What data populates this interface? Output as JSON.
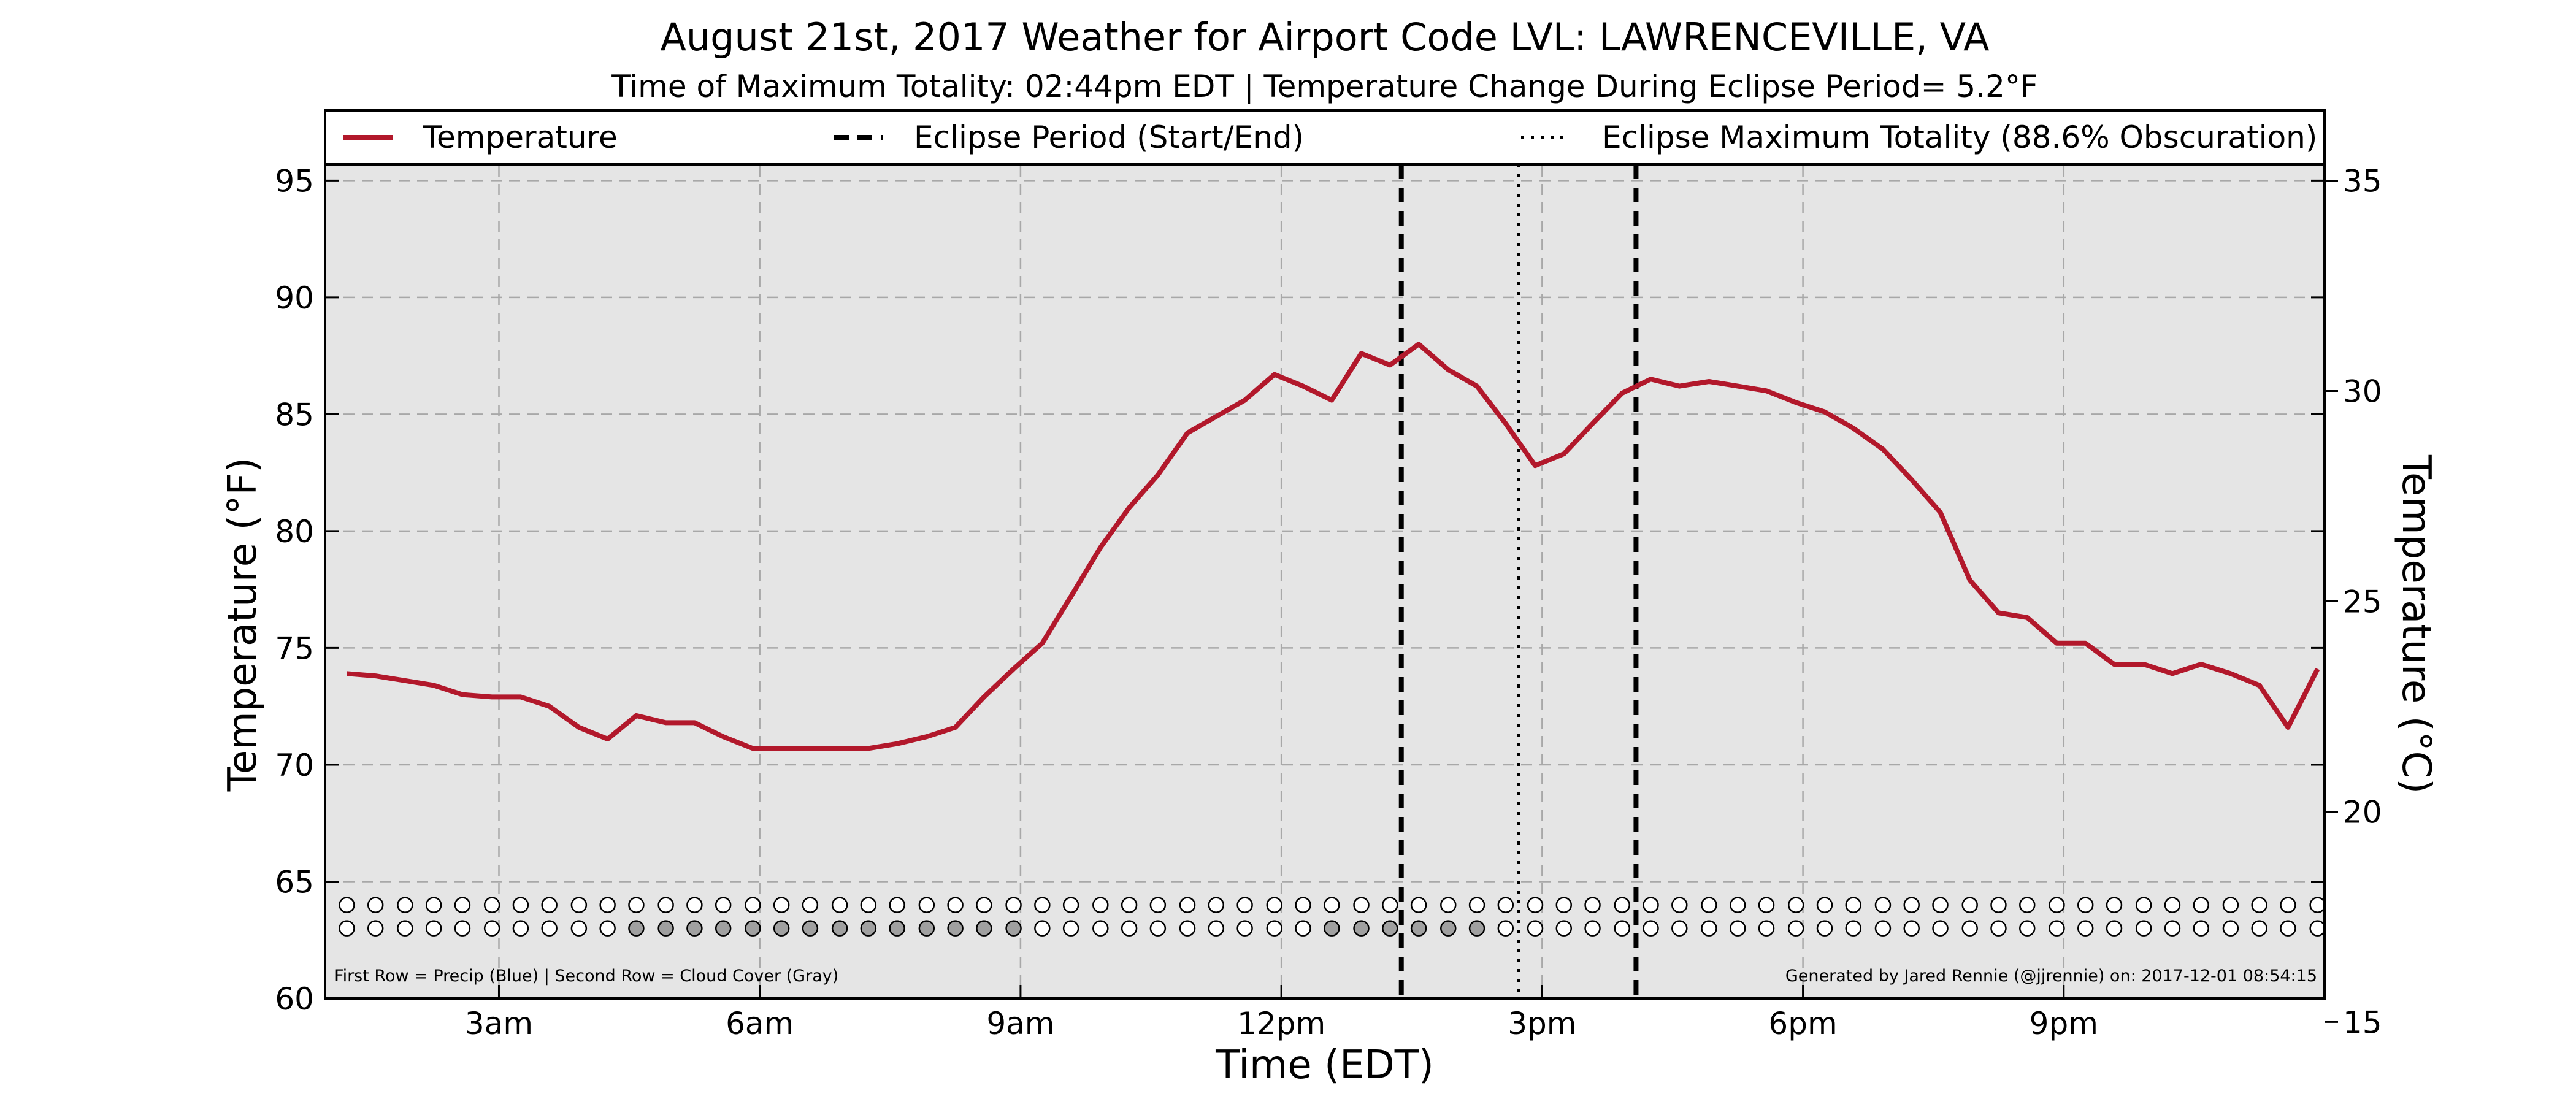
{
  "chart_data": {
    "type": "line",
    "title": "August 21st, 2017 Weather for Airport Code LVL: LAWRENCEVILLE, VA",
    "subtitle": "Time of Maximum Totality: 02:44pm EDT | Temperature Change During Eclipse Period= 5.2°F",
    "xlabel": "Time (EDT)",
    "ylabel": "Temperature (°F)",
    "ylabel_right": "Temperature (°C)",
    "xlim": [
      1.0,
      24.0
    ],
    "ylim": [
      60,
      98
    ],
    "ylim_right": [
      15.56,
      36.67
    ],
    "x_ticks": [
      {
        "x": 3,
        "label": "3am"
      },
      {
        "x": 6,
        "label": "6am"
      },
      {
        "x": 9,
        "label": "9am"
      },
      {
        "x": 12,
        "label": "12pm"
      },
      {
        "x": 15,
        "label": "3pm"
      },
      {
        "x": 18,
        "label": "6pm"
      },
      {
        "x": 21,
        "label": "9pm"
      }
    ],
    "y_ticks": [
      60,
      65,
      70,
      75,
      80,
      85,
      90,
      95
    ],
    "y_ticks_right": [
      15,
      20,
      25,
      30,
      35
    ],
    "grid": true,
    "legend": {
      "position": "top",
      "items": [
        "Temperature",
        "Eclipse Period (Start/End)",
        "Eclipse Maximum Totality (88.6% Obscuration)"
      ]
    },
    "series": [
      {
        "name": "Temperature",
        "color": "#b2182b",
        "x": [
          1.25,
          1.58,
          1.92,
          2.25,
          2.58,
          2.92,
          3.25,
          3.58,
          3.92,
          4.25,
          4.58,
          4.92,
          5.25,
          5.58,
          5.92,
          6.25,
          6.58,
          6.92,
          7.25,
          7.58,
          7.92,
          8.25,
          8.58,
          8.92,
          9.25,
          9.58,
          9.92,
          10.25,
          10.58,
          10.92,
          11.25,
          11.58,
          11.92,
          12.25,
          12.58,
          12.92,
          13.25,
          13.58,
          13.92,
          14.25,
          14.58,
          14.92,
          15.25,
          15.58,
          15.92,
          16.25,
          16.58,
          16.92,
          17.25,
          17.58,
          17.92,
          18.25,
          18.58,
          18.92,
          19.25,
          19.58,
          19.92,
          20.25,
          20.58,
          20.92,
          21.25,
          21.58,
          21.92,
          22.25,
          22.58,
          22.92,
          23.25,
          23.58,
          23.92
        ],
        "values": [
          73.9,
          73.8,
          73.6,
          73.4,
          73.0,
          72.9,
          72.9,
          72.5,
          71.6,
          71.1,
          72.1,
          71.8,
          71.8,
          71.2,
          70.7,
          70.7,
          70.7,
          70.7,
          70.7,
          70.9,
          71.2,
          71.6,
          72.9,
          74.1,
          75.2,
          77.2,
          79.3,
          81.0,
          82.4,
          84.2,
          84.9,
          85.6,
          86.7,
          86.2,
          85.6,
          87.6,
          87.1,
          88.0,
          86.9,
          86.2,
          84.6,
          82.8,
          83.3,
          84.6,
          85.9,
          86.5,
          86.2,
          86.4,
          86.2,
          86.0,
          85.5,
          85.1,
          84.4,
          83.5,
          82.2,
          80.8,
          77.9,
          76.5,
          76.3,
          75.2,
          75.2,
          74.3,
          74.3,
          73.9,
          74.3,
          73.9,
          73.4,
          71.6,
          74.1
        ]
      }
    ],
    "vlines": [
      {
        "x": 13.38,
        "style": "dashed",
        "label": "Eclipse Period (Start/End)"
      },
      {
        "x": 14.73,
        "style": "dotted",
        "label": "Eclipse Maximum Totality (88.6% Obscuration)"
      },
      {
        "x": 16.08,
        "style": "dashed",
        "label": "Eclipse Period (Start/End)"
      }
    ],
    "marker_rows": {
      "x": [
        1.25,
        1.58,
        1.92,
        2.25,
        2.58,
        2.92,
        3.25,
        3.58,
        3.92,
        4.25,
        4.58,
        4.92,
        5.25,
        5.58,
        5.92,
        6.25,
        6.58,
        6.92,
        7.25,
        7.58,
        7.92,
        8.25,
        8.58,
        8.92,
        9.25,
        9.58,
        9.92,
        10.25,
        10.58,
        10.92,
        11.25,
        11.58,
        11.92,
        12.25,
        12.58,
        12.92,
        13.25,
        13.58,
        13.92,
        14.25,
        14.58,
        14.92,
        15.25,
        15.58,
        15.92,
        16.25,
        16.58,
        16.92,
        17.25,
        17.58,
        17.92,
        18.25,
        18.58,
        18.92,
        19.25,
        19.58,
        19.92,
        20.25,
        20.58,
        20.92,
        21.25,
        21.58,
        21.92,
        22.25,
        22.58,
        22.92,
        23.25,
        23.58,
        23.92
      ],
      "precip_y": 64,
      "precip_fill": [
        "#ffffff",
        "#ffffff",
        "#ffffff",
        "#ffffff",
        "#ffffff",
        "#ffffff",
        "#ffffff",
        "#ffffff",
        "#ffffff",
        "#ffffff",
        "#ffffff",
        "#ffffff",
        "#ffffff",
        "#ffffff",
        "#ffffff",
        "#ffffff",
        "#ffffff",
        "#ffffff",
        "#ffffff",
        "#ffffff",
        "#ffffff",
        "#ffffff",
        "#ffffff",
        "#ffffff",
        "#ffffff",
        "#ffffff",
        "#ffffff",
        "#ffffff",
        "#ffffff",
        "#ffffff",
        "#ffffff",
        "#ffffff",
        "#ffffff",
        "#ffffff",
        "#ffffff",
        "#ffffff",
        "#ffffff",
        "#ffffff",
        "#ffffff",
        "#ffffff",
        "#ffffff",
        "#ffffff",
        "#ffffff",
        "#ffffff",
        "#ffffff",
        "#ffffff",
        "#ffffff",
        "#ffffff",
        "#ffffff",
        "#ffffff",
        "#ffffff",
        "#ffffff",
        "#ffffff",
        "#ffffff",
        "#ffffff",
        "#ffffff",
        "#ffffff",
        "#ffffff",
        "#ffffff",
        "#ffffff",
        "#ffffff",
        "#ffffff",
        "#ffffff",
        "#ffffff",
        "#ffffff",
        "#ffffff",
        "#ffffff",
        "#ffffff",
        "#ffffff"
      ],
      "cloud_y": 63,
      "cloud_fill": [
        "#ffffff",
        "#ffffff",
        "#ffffff",
        "#ffffff",
        "#ffffff",
        "#ffffff",
        "#ffffff",
        "#ffffff",
        "#ffffff",
        "#ffffff",
        "#a0a0a0",
        "#a0a0a0",
        "#a0a0a0",
        "#a0a0a0",
        "#a0a0a0",
        "#a0a0a0",
        "#a0a0a0",
        "#a0a0a0",
        "#a0a0a0",
        "#a0a0a0",
        "#a0a0a0",
        "#a0a0a0",
        "#a0a0a0",
        "#a0a0a0",
        "#ffffff",
        "#ffffff",
        "#ffffff",
        "#ffffff",
        "#ffffff",
        "#ffffff",
        "#ffffff",
        "#ffffff",
        "#ffffff",
        "#ffffff",
        "#a0a0a0",
        "#a0a0a0",
        "#a0a0a0",
        "#a0a0a0",
        "#a0a0a0",
        "#a0a0a0",
        "#ffffff",
        "#ffffff",
        "#ffffff",
        "#ffffff",
        "#ffffff",
        "#ffffff",
        "#ffffff",
        "#ffffff",
        "#ffffff",
        "#ffffff",
        "#ffffff",
        "#ffffff",
        "#ffffff",
        "#ffffff",
        "#ffffff",
        "#ffffff",
        "#ffffff",
        "#ffffff",
        "#ffffff",
        "#ffffff",
        "#ffffff",
        "#ffffff",
        "#ffffff",
        "#ffffff",
        "#ffffff",
        "#ffffff",
        "#ffffff",
        "#ffffff",
        "#ffffff"
      ]
    },
    "annotations": {
      "left_note": "First Row = Precip (Blue) | Second Row = Cloud Cover (Gray)",
      "right_note": "Generated by Jared Rennie (@jjrennie) on: 2017-12-01 08:54:15"
    },
    "colors": {
      "plot_bg": "#e5e5e5",
      "grid": "#a8a8a8",
      "temperature": "#b2182b"
    }
  }
}
